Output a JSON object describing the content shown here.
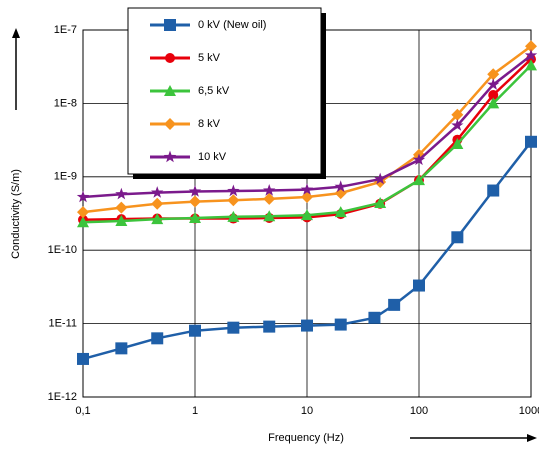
{
  "chart_data": {
    "type": "line",
    "x_label": "Frequency (Hz)",
    "y_label": "Conductivity (S/m)",
    "log_x": true,
    "log_y": true,
    "grid": true,
    "legend_position": "top-left",
    "xlim": [
      0.1,
      1000
    ],
    "ylim": [
      1e-12,
      1e-07
    ],
    "xticks": [
      {
        "value": 0.1,
        "label": "0,1"
      },
      1,
      10,
      100,
      1000
    ],
    "yticks": [
      {
        "value": 1e-12,
        "label": "1E-12"
      },
      {
        "value": 1e-11,
        "label": "1E-11"
      },
      {
        "value": 1e-10,
        "label": "1E-10"
      },
      {
        "value": 1e-09,
        "label": "1E-9"
      },
      {
        "value": 1e-08,
        "label": "1E-8"
      },
      {
        "value": 1e-07,
        "label": "1E-7"
      }
    ],
    "series": [
      {
        "name": "0 kV (New oil)",
        "color": "#1f5fa8",
        "marker": "square",
        "x": [
          0.1,
          0.22,
          0.46,
          1,
          2.2,
          4.6,
          10,
          20,
          40,
          60,
          100,
          220,
          460,
          1000
        ],
        "values": [
          3.3e-12,
          4.6e-12,
          6.3e-12,
          8e-12,
          8.8e-12,
          9.1e-12,
          9.4e-12,
          9.7e-12,
          1.2e-11,
          1.8e-11,
          3.3e-11,
          1.5e-10,
          6.5e-10,
          3e-09
        ]
      },
      {
        "name": "5 kV",
        "color": "#e8000b",
        "marker": "circle",
        "x": [
          0.1,
          0.22,
          0.46,
          1,
          2.2,
          4.6,
          10,
          20,
          45,
          100,
          220,
          460,
          1000
        ],
        "values": [
          2.6e-10,
          2.65e-10,
          2.7e-10,
          2.7e-10,
          2.7e-10,
          2.75e-10,
          2.8e-10,
          3.1e-10,
          4.3e-10,
          9e-10,
          3.2e-09,
          1.3e-08,
          4e-08
        ]
      },
      {
        "name": "6,5 kV",
        "color": "#3cc43c",
        "marker": "triangle",
        "x": [
          0.1,
          0.22,
          0.46,
          1,
          2.2,
          4.6,
          10,
          20,
          45,
          100,
          220,
          460,
          1000
        ],
        "values": [
          2.4e-10,
          2.5e-10,
          2.65e-10,
          2.75e-10,
          2.85e-10,
          2.9e-10,
          3e-10,
          3.3e-10,
          4.4e-10,
          9e-10,
          2.8e-09,
          1e-08,
          3.3e-08
        ]
      },
      {
        "name": "8 kV",
        "color": "#f7931e",
        "marker": "diamond",
        "x": [
          0.1,
          0.22,
          0.46,
          1,
          2.2,
          4.6,
          10,
          20,
          45,
          100,
          220,
          460,
          1000
        ],
        "values": [
          3.3e-10,
          3.8e-10,
          4.3e-10,
          4.6e-10,
          4.8e-10,
          5e-10,
          5.3e-10,
          6e-10,
          8.5e-10,
          2e-09,
          7e-09,
          2.5e-08,
          6e-08
        ]
      },
      {
        "name": "10 kV",
        "color": "#7b1a8c",
        "marker": "star",
        "x": [
          0.1,
          0.22,
          0.46,
          1,
          2.2,
          4.6,
          10,
          20,
          45,
          100,
          220,
          460,
          1000
        ],
        "values": [
          5.3e-10,
          5.8e-10,
          6.1e-10,
          6.3e-10,
          6.4e-10,
          6.5e-10,
          6.7e-10,
          7.3e-10,
          9.3e-10,
          1.7e-09,
          5e-09,
          1.8e-08,
          4.5e-08
        ]
      }
    ]
  }
}
